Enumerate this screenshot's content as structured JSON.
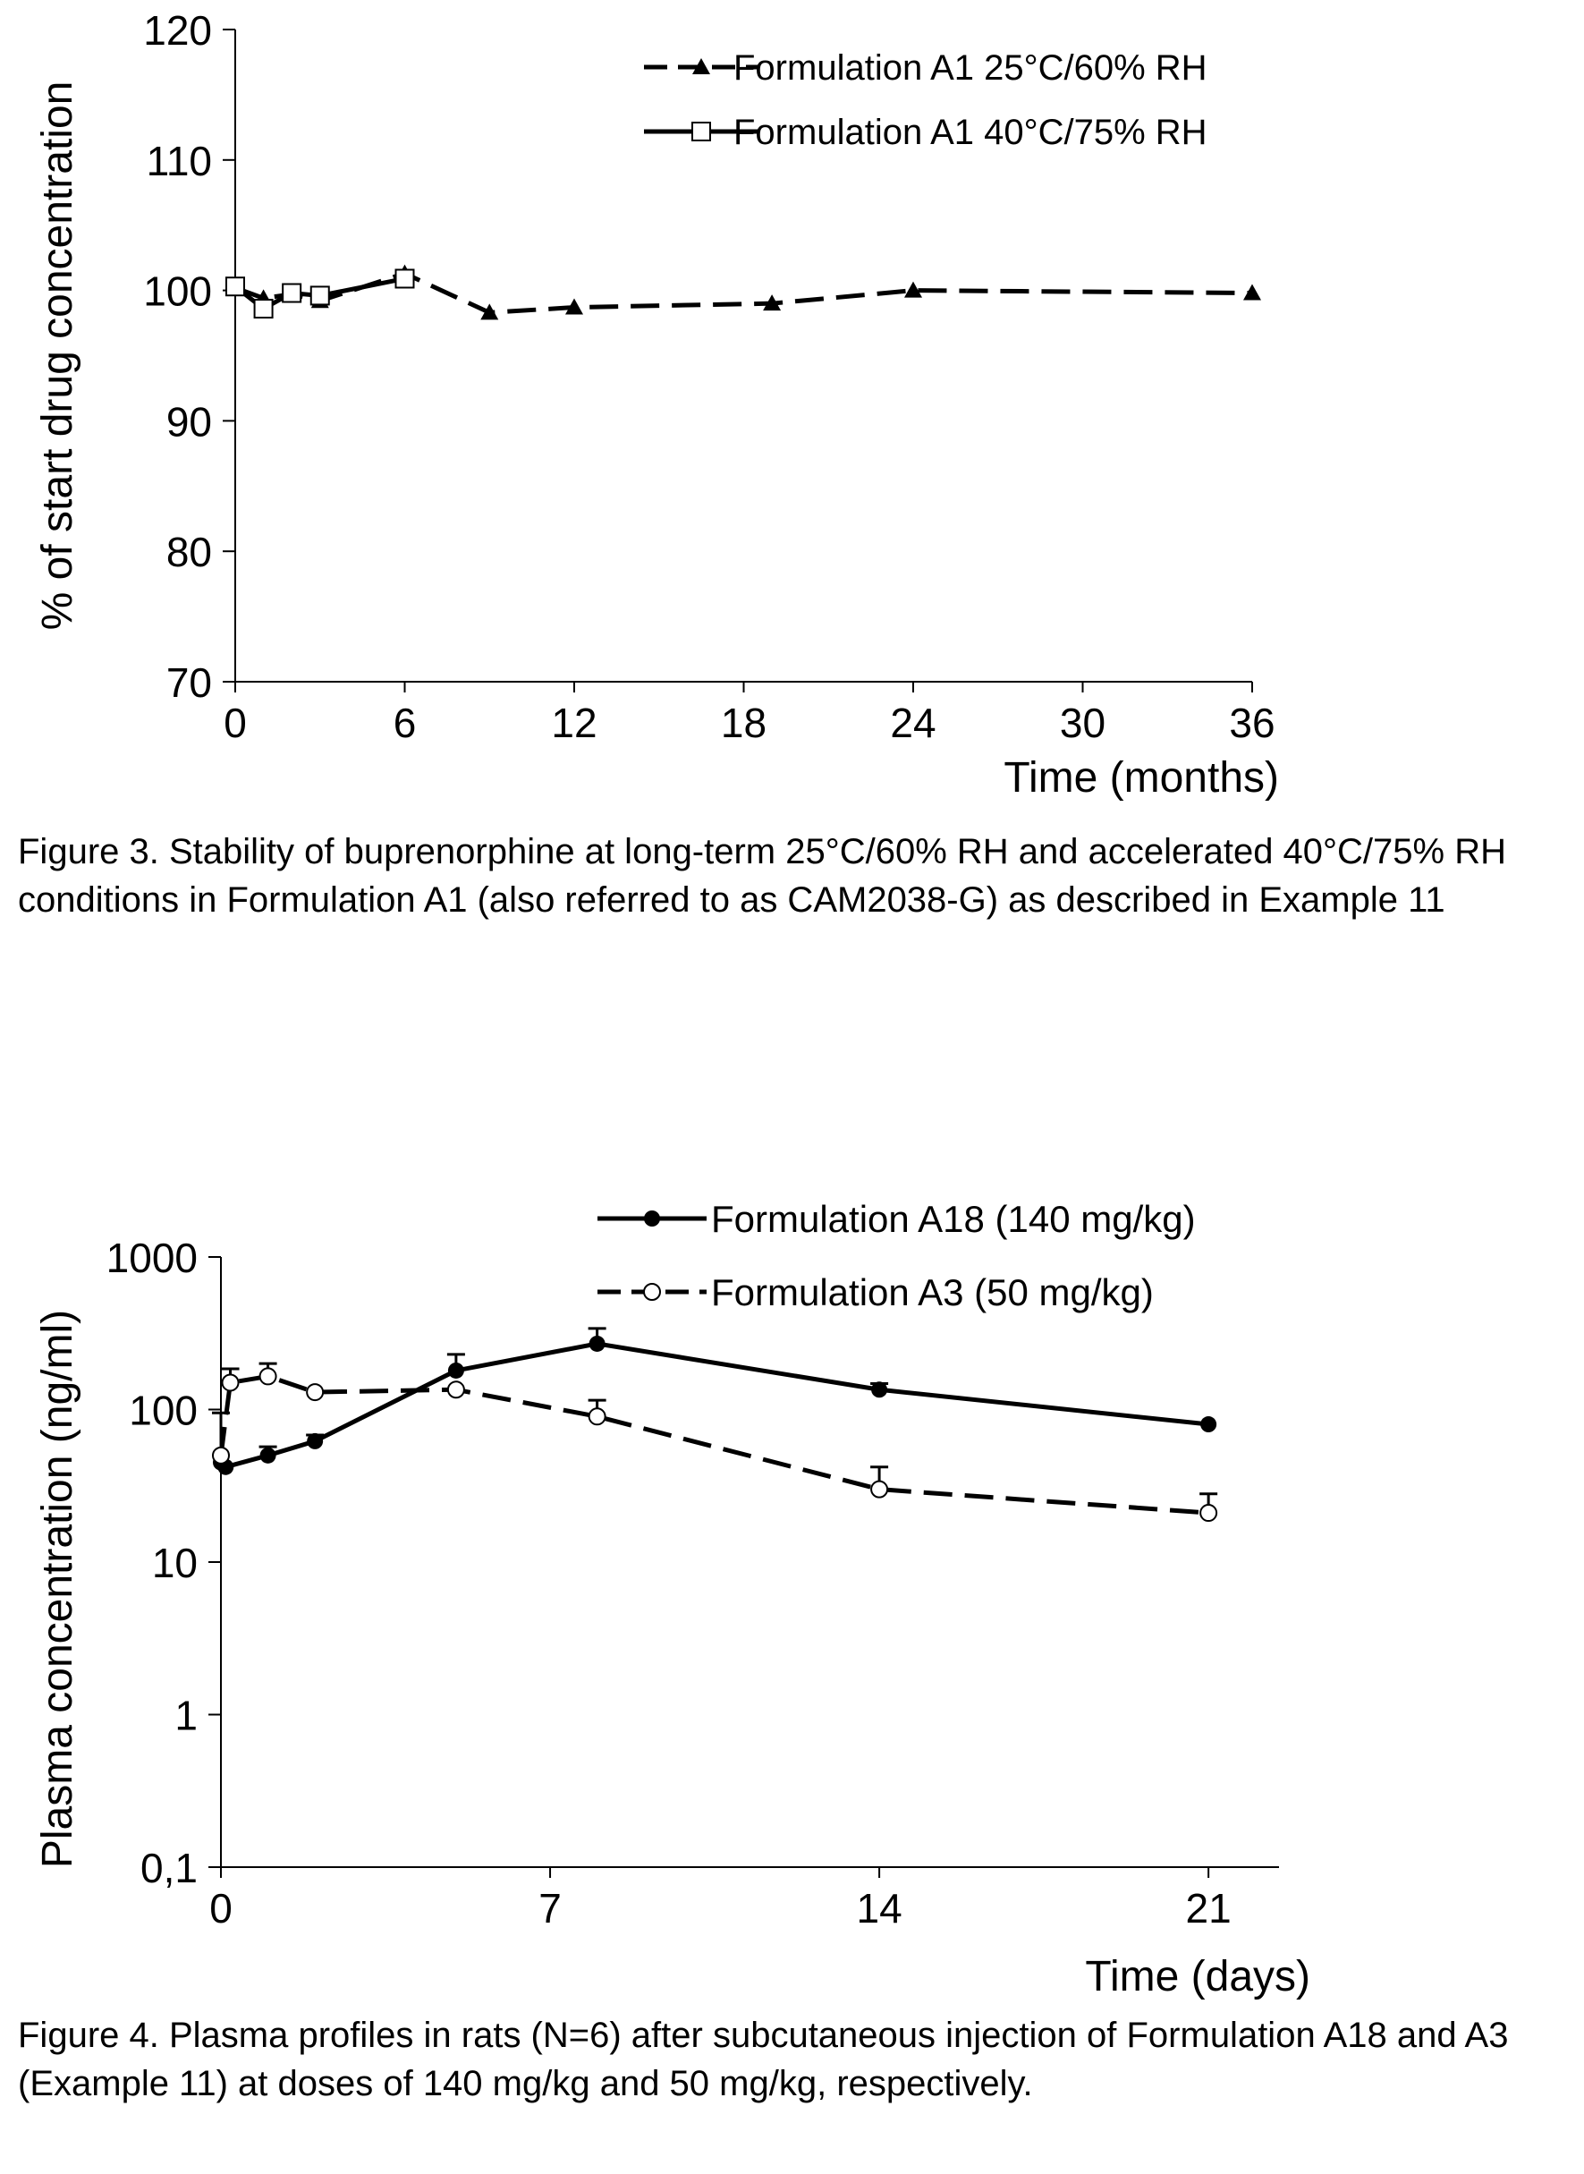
{
  "figures": [
    {
      "caption": "Figure 3. Stability of buprenorphine at long-term 25°C/60% RH and accelerated 40°C/75% RH conditions in Formulation A1 (also referred to as CAM2038-G) as described in Example 11"
    },
    {
      "caption": "Figure 4. Plasma profiles in rats (N=6) after subcutaneous injection of Formulation A18 and A3 (Example 11) at doses of 140 mg/kg and 50 mg/kg, respectively."
    }
  ],
  "chart_data": [
    {
      "type": "line",
      "title": "",
      "xlabel": "Time (months)",
      "ylabel": "% of start drug concentration",
      "xlim": [
        0,
        36
      ],
      "ylim": [
        70,
        120
      ],
      "xticks": [
        0,
        6,
        12,
        18,
        24,
        30,
        36
      ],
      "yticks": [
        70,
        80,
        90,
        100,
        110,
        120
      ],
      "xtick_labels": [
        "0",
        "6",
        "12",
        "18",
        "24",
        "30",
        "36"
      ],
      "ytick_labels": [
        "70",
        "80",
        "90",
        "100",
        "110",
        "120"
      ],
      "grid": false,
      "legend_position": "top-right",
      "series": [
        {
          "name": "Formulation A1 25°C/60% RH",
          "style": "dashed",
          "marker": "filled-triangle",
          "x": [
            0,
            1,
            2,
            3,
            6,
            9,
            12,
            19,
            24,
            36
          ],
          "y": [
            100.2,
            99.4,
            99.7,
            99.2,
            101.3,
            98.3,
            98.7,
            99.0,
            100.0,
            99.8
          ]
        },
        {
          "name": "Formulation A1 40°C/75% RH",
          "style": "solid",
          "marker": "open-square",
          "x": [
            0,
            1,
            2,
            3,
            6
          ],
          "y": [
            100.3,
            98.6,
            99.8,
            99.6,
            100.9
          ]
        }
      ]
    },
    {
      "type": "line",
      "title": "",
      "xlabel": "Time (days)",
      "ylabel": "Plasma concentration (ng/ml)",
      "xlim": [
        0,
        22.5
      ],
      "ylim": [
        0.1,
        1000
      ],
      "yscale": "log",
      "xticks": [
        0,
        7,
        14,
        21
      ],
      "yticks": [
        0.1,
        1,
        10,
        100,
        1000
      ],
      "xtick_labels": [
        "0",
        "7",
        "14",
        "21"
      ],
      "ytick_labels": [
        "0,1",
        "1",
        "10",
        "100",
        "1000"
      ],
      "grid": false,
      "legend_position": "top-right",
      "series": [
        {
          "name": "Formulation A18 (140 mg/kg)",
          "style": "solid",
          "marker": "filled-circle",
          "x": [
            0,
            0.1,
            1,
            2,
            5,
            8,
            14,
            21
          ],
          "y": [
            45,
            42,
            50,
            62,
            180,
            270,
            135,
            80
          ],
          "error_upper": [
            null,
            null,
            57,
            68,
            230,
            340,
            148,
            null
          ]
        },
        {
          "name": "Formulation A3 (50 mg/kg)",
          "style": "dashed",
          "marker": "open-circle",
          "x": [
            0,
            0.2,
            1,
            2,
            5,
            8,
            14,
            21
          ],
          "y": [
            50,
            150,
            165,
            130,
            135,
            90,
            30,
            21
          ],
          "error_upper": [
            95,
            185,
            200,
            null,
            null,
            115,
            42,
            28
          ]
        }
      ]
    }
  ]
}
